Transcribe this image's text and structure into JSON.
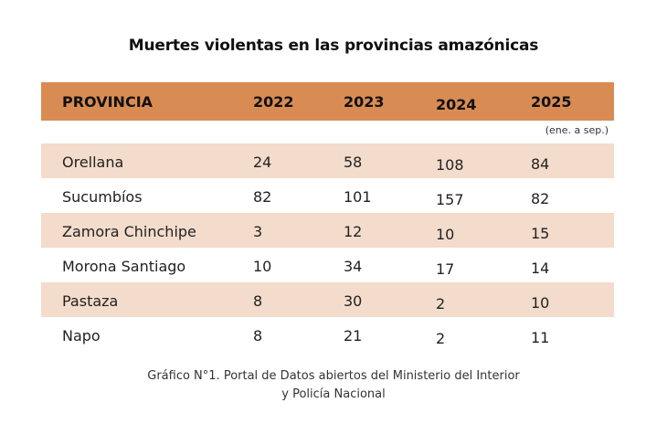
{
  "title": "Muertes violentas en las provincias amazónicas",
  "table": {
    "headers": [
      "PROVINCIA",
      "2022",
      "2023",
      "2024",
      "2025"
    ],
    "note_2025": "(ene. a sep.)",
    "rows": [
      [
        "Orellana",
        "24",
        "58",
        "108",
        "84"
      ],
      [
        "Sucumbíos",
        "82",
        "101",
        "157",
        "82"
      ],
      [
        "Zamora Chinchipe",
        "3",
        "12",
        "10",
        "15"
      ],
      [
        "Morona Santiago",
        "10",
        "34",
        "17",
        "14"
      ],
      [
        "Pastaza",
        "8",
        "30",
        "2",
        "10"
      ],
      [
        "Napo",
        "8",
        "21",
        "2",
        "11"
      ]
    ]
  },
  "caption": {
    "line1": "Gráfico N°1. Portal de Datos abiertos del Ministerio del Interior",
    "line2": "y Policía Nacional"
  },
  "colors": {
    "header_bg": "#d98b54",
    "row_shade": "#f3dccb"
  },
  "chart_data": {
    "type": "table",
    "title": "Muertes violentas en las provincias amazónicas",
    "columns": [
      "PROVINCIA",
      "2022",
      "2023",
      "2024",
      "2025 (ene. a sep.)"
    ],
    "categories": [
      "Orellana",
      "Sucumbíos",
      "Zamora Chinchipe",
      "Morona Santiago",
      "Pastaza",
      "Napo"
    ],
    "series": [
      {
        "name": "2022",
        "values": [
          24,
          82,
          3,
          10,
          8,
          8
        ]
      },
      {
        "name": "2023",
        "values": [
          58,
          101,
          12,
          34,
          30,
          21
        ]
      },
      {
        "name": "2024",
        "values": [
          108,
          157,
          10,
          17,
          2,
          2
        ]
      },
      {
        "name": "2025 (ene. a sep.)",
        "values": [
          84,
          82,
          15,
          14,
          10,
          11
        ]
      }
    ]
  }
}
